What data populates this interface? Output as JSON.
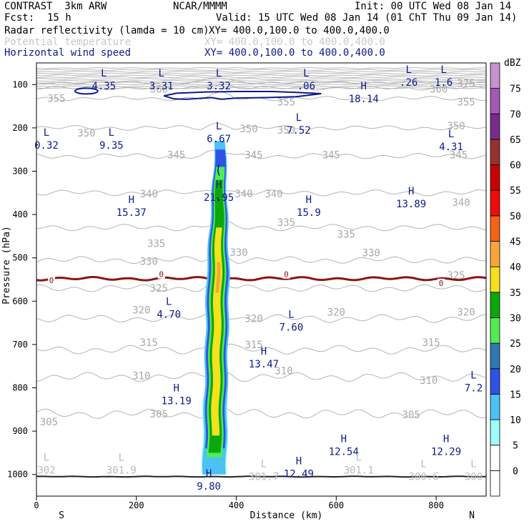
{
  "header": {
    "title": "CONTRAST  3km ARW",
    "org": "NCAR/MMMM",
    "init": "Init: 00 UTC Wed 08 Jan 14",
    "fcst_label": "Fcst:",
    "fcst_value": "15 h",
    "valid": "Valid: 15 UTC Wed 08 Jan 14 (01 ChT Thu 09 Jan 14)",
    "fields": [
      {
        "name": "Radar reflectivity (lamda = 10 cm)",
        "xy": "XY= 400.0,100.0 to 400.0,400.0",
        "color": "#000000"
      },
      {
        "name": "Potential temperature",
        "xy": "XY= 400.0,100.0 to 400.0,400.0",
        "color": "#c8c8c8"
      },
      {
        "name": "Horizontal wind speed",
        "xy": "XY= 400.0,100.0 to 400.0,400.0",
        "color": "#0a1a8c"
      }
    ]
  },
  "chart_data": {
    "type": "contour-cross-section",
    "xlabel": "Distance (km)",
    "ylabel": "Pressure (hPa)",
    "xlim": [
      0,
      900
    ],
    "ylim": [
      1050,
      50
    ],
    "x_ticks": [
      0,
      200,
      400,
      600,
      800
    ],
    "y_ticks": [
      100,
      200,
      300,
      400,
      500,
      600,
      700,
      800,
      900,
      1000
    ],
    "x_end_labels": {
      "left": "S",
      "right": "N"
    },
    "colorbar": {
      "unit": "dBZ",
      "levels": [
        0,
        5,
        10,
        15,
        20,
        25,
        30,
        35,
        40,
        45,
        50,
        55,
        60,
        65,
        70,
        75
      ],
      "colors": [
        "#ffffff",
        "#9ffcfc",
        "#4cc2f4",
        "#2e53e6",
        "#2f78b4",
        "#52ec52",
        "#0aa80a",
        "#f5e11c",
        "#f7a539",
        "#f46418",
        "#f00a0a",
        "#c80000",
        "#963232",
        "#7a2a8c",
        "#a05ab4",
        "#c891d0"
      ]
    },
    "theta_contours": [
      {
        "label": "375",
        "p": 95
      },
      {
        "label": "360",
        "p": 108
      },
      {
        "label": "355",
        "p": 132
      },
      {
        "label": "350",
        "p": 200
      },
      {
        "label": "345",
        "p": 265
      },
      {
        "label": "340",
        "p": 350
      },
      {
        "label": "335",
        "p": 430
      },
      {
        "label": "330",
        "p": 505
      },
      {
        "label": "325",
        "p": 570
      },
      {
        "label": "320",
        "p": 640
      },
      {
        "label": "315",
        "p": 712
      },
      {
        "label": "310",
        "p": 775
      },
      {
        "label": "305",
        "p": 860
      }
    ],
    "theta_labels": [
      {
        "text": "375",
        "x": 860,
        "p": 97
      },
      {
        "text": "355",
        "x": 40,
        "p": 132
      },
      {
        "text": "360",
        "x": 245,
        "p": 110
      },
      {
        "text": "360",
        "x": 805,
        "p": 110
      },
      {
        "text": "355",
        "x": 500,
        "p": 140
      },
      {
        "text": "355",
        "x": 860,
        "p": 140
      },
      {
        "text": "350",
        "x": 100,
        "p": 212
      },
      {
        "text": "350",
        "x": 425,
        "p": 202
      },
      {
        "text": "350",
        "x": 500,
        "p": 205
      },
      {
        "text": "350",
        "x": 840,
        "p": 195
      },
      {
        "text": "345",
        "x": 280,
        "p": 262
      },
      {
        "text": "345",
        "x": 435,
        "p": 262
      },
      {
        "text": "345",
        "x": 590,
        "p": 262
      },
      {
        "text": "345",
        "x": 845,
        "p": 262
      },
      {
        "text": "340",
        "x": 225,
        "p": 352
      },
      {
        "text": "340",
        "x": 415,
        "p": 352
      },
      {
        "text": "340",
        "x": 475,
        "p": 352
      },
      {
        "text": "340",
        "x": 850,
        "p": 372
      },
      {
        "text": "335",
        "x": 500,
        "p": 418
      },
      {
        "text": "335",
        "x": 240,
        "p": 467
      },
      {
        "text": "335",
        "x": 620,
        "p": 445
      },
      {
        "text": "330",
        "x": 225,
        "p": 508
      },
      {
        "text": "330",
        "x": 405,
        "p": 487
      },
      {
        "text": "330",
        "x": 670,
        "p": 488
      },
      {
        "text": "325",
        "x": 840,
        "p": 540
      },
      {
        "text": "325",
        "x": 245,
        "p": 570
      },
      {
        "text": "320",
        "x": 210,
        "p": 620
      },
      {
        "text": "320",
        "x": 435,
        "p": 640
      },
      {
        "text": "320",
        "x": 600,
        "p": 625
      },
      {
        "text": "320",
        "x": 860,
        "p": 625
      },
      {
        "text": "315",
        "x": 225,
        "p": 695
      },
      {
        "text": "315",
        "x": 435,
        "p": 700
      },
      {
        "text": "315",
        "x": 790,
        "p": 695
      },
      {
        "text": "310",
        "x": 210,
        "p": 772
      },
      {
        "text": "310",
        "x": 495,
        "p": 760
      },
      {
        "text": "310",
        "x": 785,
        "p": 783
      },
      {
        "text": "305",
        "x": 25,
        "p": 878
      },
      {
        "text": "305",
        "x": 245,
        "p": 860
      },
      {
        "text": "305",
        "x": 750,
        "p": 862
      }
    ],
    "zero_line_label": "0",
    "zero_line_labels": [
      {
        "text": "0",
        "x": 30,
        "p": 552
      },
      {
        "text": "0",
        "x": 250,
        "p": 538
      },
      {
        "text": "0",
        "x": 500,
        "p": 538
      },
      {
        "text": "0",
        "x": 810,
        "p": 558
      }
    ],
    "extrema": [
      {
        "type": "L",
        "value": "4.35",
        "x": 135,
        "p": 88
      },
      {
        "type": "L",
        "value": "3.31",
        "x": 250,
        "p": 88
      },
      {
        "type": "L",
        "value": "3.32",
        "x": 365,
        "p": 88
      },
      {
        "type": "L",
        "value": ".06",
        "x": 540,
        "p": 88
      },
      {
        "type": "L",
        "value": ".26",
        "x": 745,
        "p": 80
      },
      {
        "type": "L",
        "value": "1.6",
        "x": 815,
        "p": 80
      },
      {
        "type": "H",
        "value": "18.14",
        "x": 655,
        "p": 118
      },
      {
        "type": "L",
        "value": "0.32",
        "x": 20,
        "p": 225
      },
      {
        "type": "L",
        "value": "9.35",
        "x": 150,
        "p": 225
      },
      {
        "type": "L",
        "value": "6.67",
        "x": 365,
        "p": 210
      },
      {
        "type": "L",
        "value": "7.52",
        "x": 525,
        "p": 190
      },
      {
        "type": "L",
        "value": "4.31",
        "x": 830,
        "p": 228
      },
      {
        "type": "H",
        "value": "21.95",
        "x": 365,
        "p": 345
      },
      {
        "type": "H",
        "value": "15.37",
        "x": 190,
        "p": 380
      },
      {
        "type": "H",
        "value": "15.9",
        "x": 545,
        "p": 380
      },
      {
        "type": "H",
        "value": "13.89",
        "x": 750,
        "p": 360
      },
      {
        "type": "L",
        "value": "4.70",
        "x": 265,
        "p": 615
      },
      {
        "type": "L",
        "value": "7.60",
        "x": 510,
        "p": 645
      },
      {
        "type": "H",
        "value": "13.47",
        "x": 455,
        "p": 730
      },
      {
        "type": "H",
        "value": "13.19",
        "x": 280,
        "p": 815
      },
      {
        "type": "L",
        "value": "7.2",
        "x": 875,
        "p": 785
      },
      {
        "type": "H",
        "value": "12.54",
        "x": 615,
        "p": 932
      },
      {
        "type": "H",
        "value": "12.29",
        "x": 820,
        "p": 932
      },
      {
        "type": "L",
        "value": "302",
        "x": 20,
        "p": 975
      },
      {
        "type": "L",
        "value": "301.9",
        "x": 170,
        "p": 975
      },
      {
        "type": "H",
        "value": "9.80",
        "x": 345,
        "p": 1012
      },
      {
        "type": "L",
        "value": "301.7",
        "x": 455,
        "p": 990
      },
      {
        "type": "H",
        "value": "12.49",
        "x": 525,
        "p": 983
      },
      {
        "type": "L",
        "value": "301.1",
        "x": 645,
        "p": 975
      },
      {
        "type": "L",
        "value": "300.6",
        "x": 775,
        "p": 990
      },
      {
        "type": "L",
        "value": "300",
        "x": 875,
        "p": 990
      }
    ],
    "reflectivity_column": {
      "x_range_km": [
        335,
        385
      ],
      "p_top": 230,
      "p_bottom": 1005,
      "max_dBZ": 40
    }
  }
}
